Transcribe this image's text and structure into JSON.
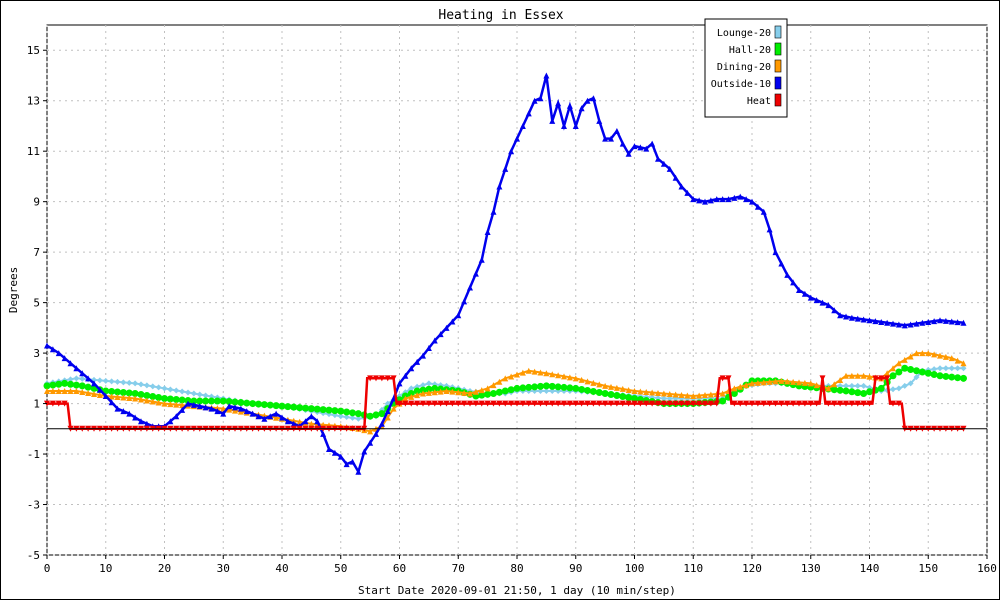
{
  "chart_data": {
    "type": "line",
    "title": "Heating in Essex",
    "xlabel": "Start Date 2020-09-01 21:50, 1 day (10 min/step)",
    "ylabel": "Degrees",
    "xlim": [
      0,
      160
    ],
    "ylim": [
      -5,
      16
    ],
    "xticks": [
      "0",
      "10",
      "20",
      "30",
      "40",
      "50",
      "60",
      "70",
      "80",
      "90",
      "100",
      "110",
      "120",
      "130",
      "140",
      "150",
      "160"
    ],
    "yticks": [
      "-5",
      "-3",
      "-1",
      "1",
      "3",
      "5",
      "7",
      "9",
      "11",
      "13",
      "15"
    ],
    "grid": true,
    "legend_position": "top-right",
    "series": [
      {
        "name": "Lounge-20",
        "color": "#87ceeb",
        "marker": "diamond",
        "points": [
          [
            0,
            1.8
          ],
          [
            5,
            2.0
          ],
          [
            10,
            1.9
          ],
          [
            15,
            1.8
          ],
          [
            20,
            1.6
          ],
          [
            25,
            1.4
          ],
          [
            30,
            1.2
          ],
          [
            35,
            1.0
          ],
          [
            40,
            0.9
          ],
          [
            45,
            0.7
          ],
          [
            50,
            0.5
          ],
          [
            53,
            0.4
          ],
          [
            56,
            0.5
          ],
          [
            58,
            1.0
          ],
          [
            60,
            1.3
          ],
          [
            62,
            1.6
          ],
          [
            65,
            1.8
          ],
          [
            68,
            1.7
          ],
          [
            72,
            1.5
          ],
          [
            75,
            1.4
          ],
          [
            78,
            1.4
          ],
          [
            80,
            1.5
          ],
          [
            85,
            1.5
          ],
          [
            90,
            1.5
          ],
          [
            95,
            1.4
          ],
          [
            100,
            1.3
          ],
          [
            105,
            1.2
          ],
          [
            110,
            1.2
          ],
          [
            115,
            1.2
          ],
          [
            117,
            1.5
          ],
          [
            119,
            1.7
          ],
          [
            122,
            1.8
          ],
          [
            126,
            1.8
          ],
          [
            130,
            1.7
          ],
          [
            135,
            1.7
          ],
          [
            139,
            1.7
          ],
          [
            142,
            1.5
          ],
          [
            145,
            1.6
          ],
          [
            147,
            1.8
          ],
          [
            149,
            2.3
          ],
          [
            152,
            2.4
          ],
          [
            156,
            2.4
          ]
        ]
      },
      {
        "name": "Hall-20",
        "color": "#00ee00",
        "marker": "circle",
        "points": [
          [
            0,
            1.7
          ],
          [
            3,
            1.8
          ],
          [
            6,
            1.7
          ],
          [
            10,
            1.5
          ],
          [
            15,
            1.4
          ],
          [
            20,
            1.2
          ],
          [
            25,
            1.1
          ],
          [
            30,
            1.1
          ],
          [
            35,
            1.0
          ],
          [
            40,
            0.9
          ],
          [
            45,
            0.8
          ],
          [
            50,
            0.7
          ],
          [
            53,
            0.6
          ],
          [
            55,
            0.5
          ],
          [
            57,
            0.6
          ],
          [
            59,
            1.0
          ],
          [
            61,
            1.3
          ],
          [
            63,
            1.5
          ],
          [
            66,
            1.6
          ],
          [
            70,
            1.5
          ],
          [
            73,
            1.3
          ],
          [
            76,
            1.4
          ],
          [
            78,
            1.5
          ],
          [
            80,
            1.6
          ],
          [
            85,
            1.7
          ],
          [
            90,
            1.6
          ],
          [
            95,
            1.4
          ],
          [
            100,
            1.2
          ],
          [
            105,
            1.0
          ],
          [
            110,
            1.0
          ],
          [
            115,
            1.1
          ],
          [
            117,
            1.4
          ],
          [
            120,
            1.9
          ],
          [
            124,
            1.9
          ],
          [
            128,
            1.7
          ],
          [
            132,
            1.6
          ],
          [
            136,
            1.5
          ],
          [
            139,
            1.4
          ],
          [
            142,
            1.6
          ],
          [
            144,
            2.1
          ],
          [
            146,
            2.4
          ],
          [
            148,
            2.3
          ],
          [
            152,
            2.1
          ],
          [
            156,
            2.0
          ]
        ]
      },
      {
        "name": "Dining-20",
        "color": "#ff9900",
        "marker": "triangle-up",
        "points": [
          [
            0,
            1.5
          ],
          [
            5,
            1.5
          ],
          [
            10,
            1.3
          ],
          [
            15,
            1.2
          ],
          [
            20,
            1.0
          ],
          [
            25,
            0.9
          ],
          [
            30,
            0.8
          ],
          [
            35,
            0.6
          ],
          [
            40,
            0.4
          ],
          [
            45,
            0.2
          ],
          [
            50,
            0.1
          ],
          [
            53,
            0.0
          ],
          [
            55,
            -0.1
          ],
          [
            57,
            0.1
          ],
          [
            59,
            0.8
          ],
          [
            61,
            1.2
          ],
          [
            64,
            1.4
          ],
          [
            68,
            1.5
          ],
          [
            72,
            1.4
          ],
          [
            75,
            1.6
          ],
          [
            78,
            2.0
          ],
          [
            82,
            2.3
          ],
          [
            85,
            2.2
          ],
          [
            90,
            2.0
          ],
          [
            95,
            1.7
          ],
          [
            100,
            1.5
          ],
          [
            105,
            1.4
          ],
          [
            110,
            1.3
          ],
          [
            115,
            1.4
          ],
          [
            117,
            1.6
          ],
          [
            120,
            1.8
          ],
          [
            125,
            1.9
          ],
          [
            130,
            1.8
          ],
          [
            133,
            1.6
          ],
          [
            136,
            2.1
          ],
          [
            139,
            2.1
          ],
          [
            142,
            2.0
          ],
          [
            145,
            2.6
          ],
          [
            148,
            3.0
          ],
          [
            150,
            3.0
          ],
          [
            154,
            2.8
          ],
          [
            156,
            2.6
          ]
        ]
      },
      {
        "name": "Outside-10",
        "color": "#0000ee",
        "marker": "triangle-up",
        "points": [
          [
            0,
            3.3
          ],
          [
            2,
            3.0
          ],
          [
            4,
            2.6
          ],
          [
            6,
            2.2
          ],
          [
            8,
            1.8
          ],
          [
            10,
            1.3
          ],
          [
            12,
            0.8
          ],
          [
            14,
            0.6
          ],
          [
            16,
            0.3
          ],
          [
            18,
            0.1
          ],
          [
            20,
            0.1
          ],
          [
            22,
            0.5
          ],
          [
            24,
            1.0
          ],
          [
            26,
            0.9
          ],
          [
            28,
            0.8
          ],
          [
            30,
            0.6
          ],
          [
            31,
            0.9
          ],
          [
            33,
            0.8
          ],
          [
            35,
            0.6
          ],
          [
            37,
            0.4
          ],
          [
            39,
            0.6
          ],
          [
            41,
            0.3
          ],
          [
            43,
            0.1
          ],
          [
            45,
            0.5
          ],
          [
            46,
            0.3
          ],
          [
            47,
            -0.2
          ],
          [
            48,
            -0.8
          ],
          [
            50,
            -1.1
          ],
          [
            51,
            -1.4
          ],
          [
            52,
            -1.3
          ],
          [
            53,
            -1.7
          ],
          [
            54,
            -0.9
          ],
          [
            56,
            -0.2
          ],
          [
            57,
            0.2
          ],
          [
            58,
            0.7
          ],
          [
            59,
            1.2
          ],
          [
            60,
            1.8
          ],
          [
            62,
            2.4
          ],
          [
            64,
            2.9
          ],
          [
            66,
            3.5
          ],
          [
            68,
            4.0
          ],
          [
            70,
            4.5
          ],
          [
            72,
            5.6
          ],
          [
            74,
            6.7
          ],
          [
            75,
            7.8
          ],
          [
            76,
            8.6
          ],
          [
            77,
            9.6
          ],
          [
            78,
            10.3
          ],
          [
            79,
            11.0
          ],
          [
            80,
            11.5
          ],
          [
            81,
            12.0
          ],
          [
            82,
            12.5
          ],
          [
            83,
            13.0
          ],
          [
            84,
            13.1
          ],
          [
            85,
            14.0
          ],
          [
            86,
            12.2
          ],
          [
            87,
            12.9
          ],
          [
            88,
            12.0
          ],
          [
            89,
            12.8
          ],
          [
            90,
            12.0
          ],
          [
            91,
            12.7
          ],
          [
            92,
            13.0
          ],
          [
            93,
            13.1
          ],
          [
            94,
            12.2
          ],
          [
            95,
            11.5
          ],
          [
            96,
            11.5
          ],
          [
            97,
            11.8
          ],
          [
            98,
            11.3
          ],
          [
            99,
            10.9
          ],
          [
            100,
            11.2
          ],
          [
            102,
            11.1
          ],
          [
            103,
            11.3
          ],
          [
            104,
            10.7
          ],
          [
            106,
            10.3
          ],
          [
            108,
            9.6
          ],
          [
            110,
            9.1
          ],
          [
            112,
            9.0
          ],
          [
            114,
            9.1
          ],
          [
            116,
            9.1
          ],
          [
            118,
            9.2
          ],
          [
            120,
            9.0
          ],
          [
            122,
            8.6
          ],
          [
            123,
            7.9
          ],
          [
            124,
            7.0
          ],
          [
            126,
            6.1
          ],
          [
            128,
            5.5
          ],
          [
            130,
            5.2
          ],
          [
            133,
            4.9
          ],
          [
            135,
            4.5
          ],
          [
            137,
            4.4
          ],
          [
            140,
            4.3
          ],
          [
            143,
            4.2
          ],
          [
            146,
            4.1
          ],
          [
            149,
            4.2
          ],
          [
            152,
            4.3
          ],
          [
            156,
            4.2
          ]
        ]
      },
      {
        "name": "Heat",
        "color": "#ee0000",
        "marker": "triangle-down",
        "points": [
          [
            0,
            1
          ],
          [
            3.5,
            1
          ],
          [
            4,
            0
          ],
          [
            54,
            0
          ],
          [
            54.5,
            2
          ],
          [
            59,
            2
          ],
          [
            59.5,
            1
          ],
          [
            114,
            1
          ],
          [
            114.5,
            2
          ],
          [
            116,
            2
          ],
          [
            116.5,
            1
          ],
          [
            131.5,
            1
          ],
          [
            132,
            2
          ],
          [
            132.5,
            1
          ],
          [
            140.5,
            1
          ],
          [
            141,
            2
          ],
          [
            143,
            2
          ],
          [
            143.5,
            1
          ],
          [
            145.5,
            1
          ],
          [
            146,
            0
          ],
          [
            156,
            0
          ]
        ]
      }
    ]
  }
}
